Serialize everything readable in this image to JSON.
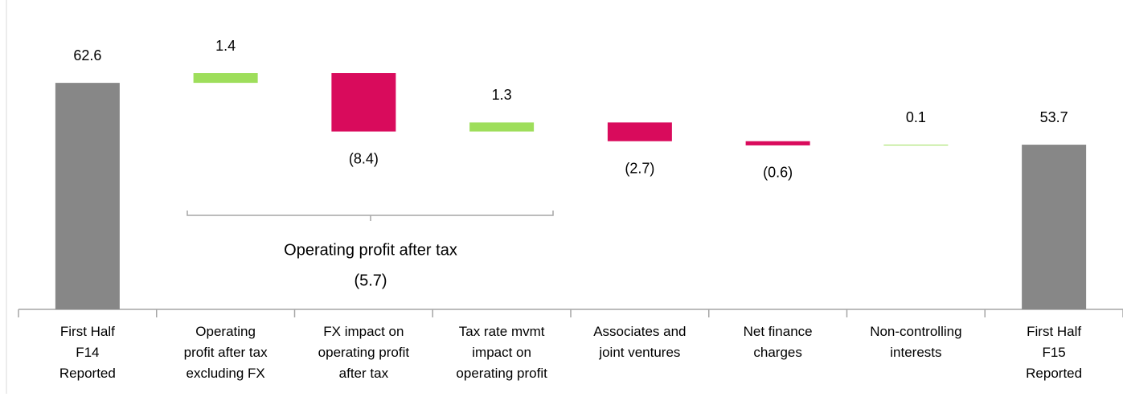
{
  "chart_data": {
    "type": "waterfall",
    "categories": [
      "First Half\nF14\nReported",
      "Operating\nprofit after tax\nexcluding FX",
      "FX impact on\noperating profit\nafter tax",
      "Tax rate mvmt\nimpact on\noperating profit",
      "Associates and\njoint ventures",
      "Net finance\ncharges",
      "Non-controlling\ninterests",
      "First Half\nF15\nReported"
    ],
    "values": [
      62.6,
      1.4,
      -8.4,
      1.3,
      -2.7,
      -0.6,
      0.1,
      53.7
    ],
    "value_labels": [
      "62.6",
      "1.4",
      "(8.4)",
      "1.3",
      "(2.7)",
      "(0.6)",
      "0.1",
      "53.7"
    ],
    "totals": [
      true,
      false,
      false,
      false,
      false,
      false,
      false,
      true
    ],
    "colors": {
      "total": "#878787",
      "increase": "#9ede5b",
      "decrease": "#d90b5c"
    },
    "ylim": [
      30,
      64
    ],
    "annotation": {
      "text": "Operating profit after tax",
      "value_label": "(5.7)"
    }
  }
}
